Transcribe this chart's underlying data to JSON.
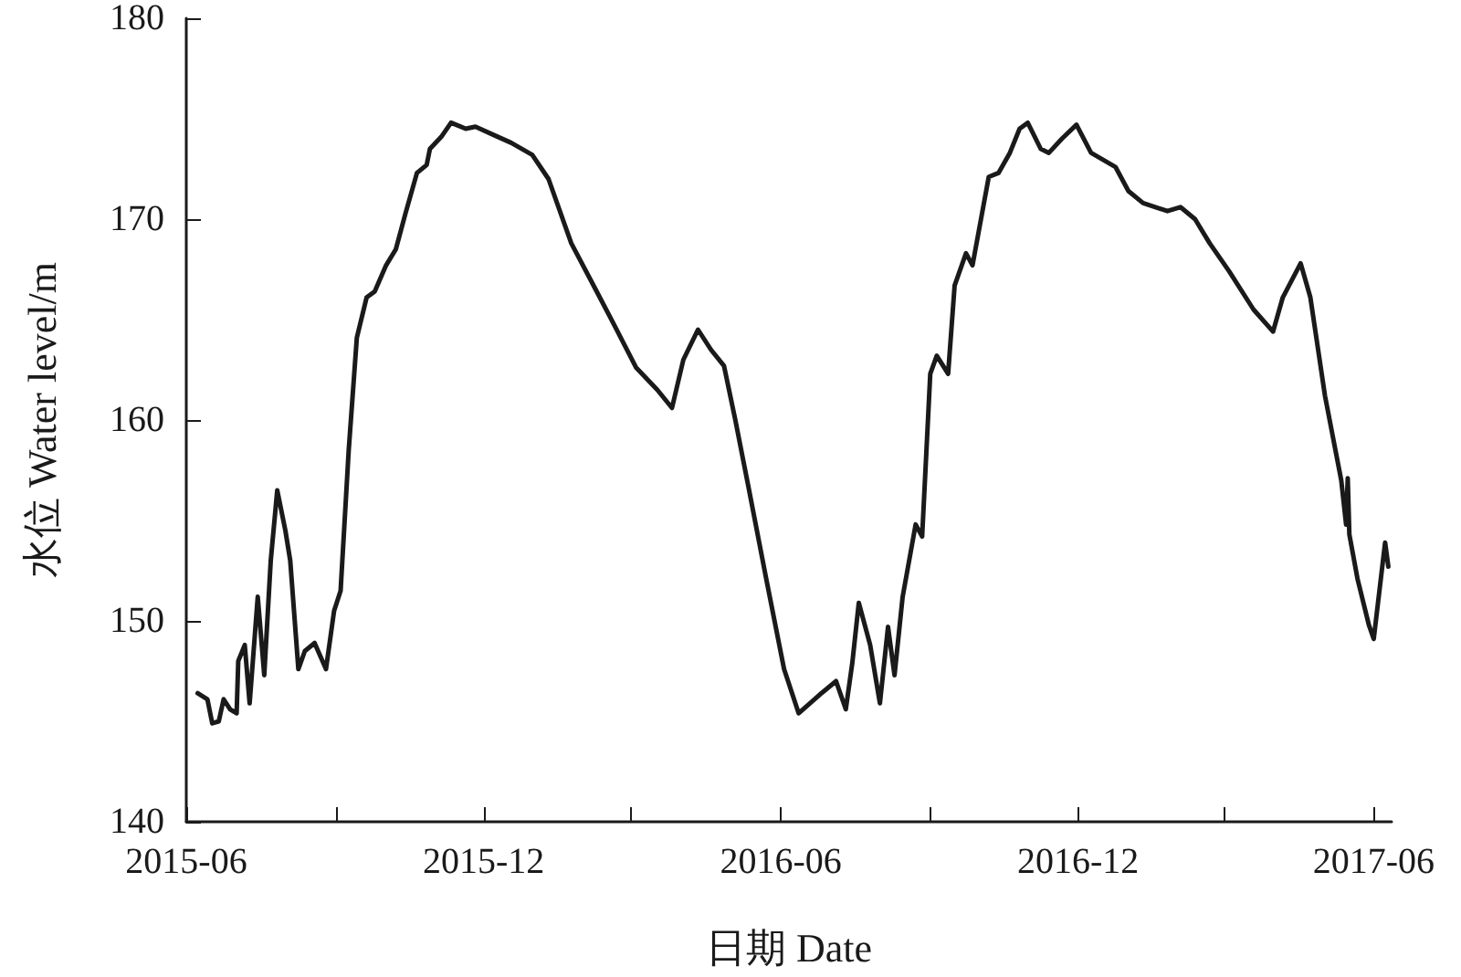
{
  "chart_data": {
    "type": "line",
    "xlabel": "日期 Date",
    "ylabel": "水位 Water level/m",
    "xlim": [
      "2015-06-01",
      "2017-06-12"
    ],
    "xticks": [
      "2015-06",
      {
        "value": "2015-09",
        "label": null
      },
      "2015-12",
      {
        "value": "2016-03",
        "label": null
      },
      "2016-06",
      {
        "value": "2016-09",
        "label": null
      },
      "2016-12",
      {
        "value": "2017-03",
        "label": null
      },
      "2017-06"
    ],
    "ylim": [
      140,
      180
    ],
    "yticks": [
      140,
      150,
      160,
      170,
      180
    ],
    "grid": false,
    "marker": "none",
    "line_style": "solid",
    "series": [
      {
        "color": "#1a1a1a",
        "x": [
          "2015-06-08",
          "2015-06-14",
          "2015-06-17",
          "2015-06-21",
          "2015-06-24",
          "2015-06-28",
          "2015-07-02",
          "2015-07-03",
          "2015-07-07",
          "2015-07-10",
          "2015-07-15",
          "2015-07-19",
          "2015-07-23",
          "2015-07-27",
          "2015-08-01",
          "2015-08-04",
          "2015-08-09",
          "2015-08-13",
          "2015-08-19",
          "2015-08-26",
          "2015-08-31",
          "2015-09-04",
          "2015-09-09",
          "2015-09-14",
          "2015-09-20",
          "2015-09-25",
          "2015-10-02",
          "2015-10-08",
          "2015-10-14",
          "2015-10-21",
          "2015-10-27",
          "2015-10-29",
          "2015-11-05",
          "2015-11-11",
          "2015-11-20",
          "2015-11-26",
          "2015-12-07",
          "2015-12-18",
          "2015-12-31",
          "2016-01-10",
          "2016-01-24",
          "2016-02-08",
          "2016-02-19",
          "2016-03-04",
          "2016-03-17",
          "2016-03-26",
          "2016-04-02",
          "2016-04-11",
          "2016-04-19",
          "2016-04-27",
          "2016-05-04",
          "2016-05-12",
          "2016-05-23",
          "2016-06-03",
          "2016-06-12",
          "2016-06-26",
          "2016-07-05",
          "2016-07-11",
          "2016-07-15",
          "2016-07-19",
          "2016-07-26",
          "2016-08-01",
          "2016-08-06",
          "2016-08-10",
          "2016-08-15",
          "2016-08-23",
          "2016-08-27",
          "2016-09-01",
          "2016-09-05",
          "2016-09-12",
          "2016-09-16",
          "2016-09-23",
          "2016-09-27",
          "2016-10-07",
          "2016-10-13",
          "2016-10-20",
          "2016-10-26",
          "2016-10-31",
          "2016-11-08",
          "2016-11-13",
          "2016-11-21",
          "2016-11-30",
          "2016-12-09",
          "2016-12-24",
          "2017-01-01",
          "2017-01-10",
          "2017-01-25",
          "2017-02-02",
          "2017-02-11",
          "2017-02-20",
          "2017-03-04",
          "2017-03-19",
          "2017-03-31",
          "2017-04-06",
          "2017-04-17",
          "2017-04-23",
          "2017-05-02",
          "2017-05-12",
          "2017-05-15",
          "2017-05-16",
          "2017-05-17",
          "2017-05-22",
          "2017-05-29",
          "2017-06-01",
          "2017-06-08",
          "2017-06-10"
        ],
        "values": [
          146.4,
          146.1,
          144.9,
          145.0,
          146.1,
          145.6,
          145.4,
          148.0,
          148.8,
          145.9,
          151.2,
          147.3,
          153.0,
          156.5,
          154.5,
          153.0,
          147.6,
          148.5,
          148.9,
          147.6,
          150.5,
          151.5,
          158.5,
          164.1,
          166.1,
          166.4,
          167.7,
          168.5,
          170.3,
          172.3,
          172.7,
          173.5,
          174.1,
          174.8,
          174.5,
          174.6,
          174.2,
          173.8,
          173.2,
          172.0,
          168.8,
          166.5,
          164.8,
          162.6,
          161.5,
          160.6,
          163.0,
          164.5,
          163.5,
          162.7,
          160.0,
          156.7,
          152.1,
          147.6,
          145.4,
          146.4,
          147.0,
          145.6,
          147.9,
          150.9,
          148.8,
          145.9,
          149.7,
          147.3,
          151.2,
          154.8,
          154.2,
          162.3,
          163.2,
          162.3,
          166.7,
          168.3,
          167.7,
          172.1,
          172.3,
          173.3,
          174.5,
          174.8,
          173.5,
          173.3,
          174.0,
          174.7,
          173.3,
          172.6,
          171.4,
          170.8,
          170.4,
          170.6,
          170.0,
          168.8,
          167.4,
          165.5,
          164.4,
          166.1,
          167.8,
          166.1,
          161.2,
          157.0,
          154.8,
          157.1,
          154.3,
          152.1,
          149.8,
          149.1,
          153.9,
          152.7
        ]
      }
    ]
  }
}
